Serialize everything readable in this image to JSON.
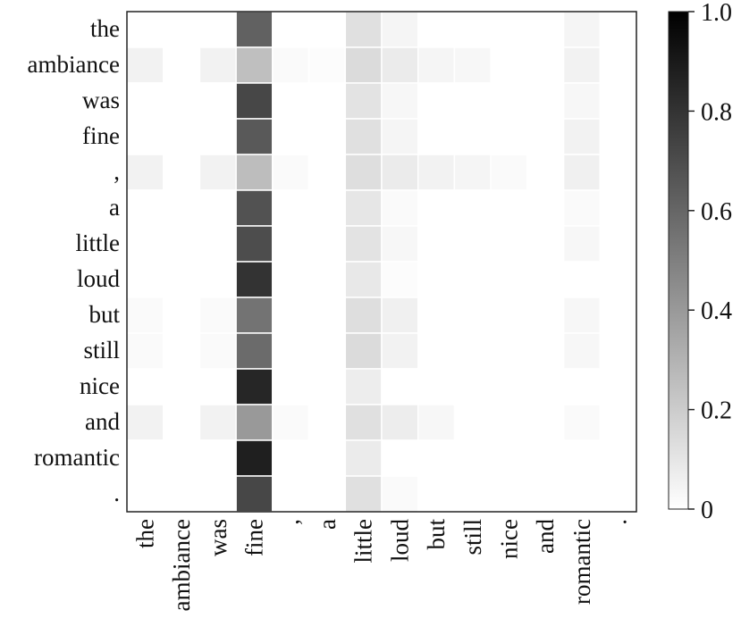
{
  "chart_data": {
    "type": "heatmap",
    "title": "",
    "xlabel": "",
    "ylabel": "",
    "x_labels": [
      "the",
      "ambiance",
      "was",
      "fine",
      ",",
      "a",
      "little",
      "loud",
      "but",
      "still",
      "nice",
      "and",
      "romantic",
      "."
    ],
    "y_labels": [
      "the",
      "ambiance",
      "was",
      "fine",
      ",",
      "a",
      "little",
      "loud",
      "but",
      "still",
      "nice",
      "and",
      "romantic",
      "."
    ],
    "values": [
      [
        0.0,
        0.0,
        0.0,
        0.62,
        0.0,
        0.0,
        0.12,
        0.04,
        0.0,
        0.0,
        0.0,
        0.0,
        0.04,
        0.0
      ],
      [
        0.05,
        0.0,
        0.05,
        0.25,
        0.02,
        0.01,
        0.14,
        0.08,
        0.04,
        0.03,
        0.0,
        0.0,
        0.05,
        0.0
      ],
      [
        0.0,
        0.0,
        0.0,
        0.72,
        0.0,
        0.0,
        0.11,
        0.03,
        0.0,
        0.0,
        0.0,
        0.0,
        0.03,
        0.0
      ],
      [
        0.0,
        0.0,
        0.0,
        0.65,
        0.0,
        0.0,
        0.12,
        0.04,
        0.0,
        0.0,
        0.0,
        0.0,
        0.05,
        0.0
      ],
      [
        0.05,
        0.0,
        0.05,
        0.26,
        0.02,
        0.0,
        0.13,
        0.08,
        0.05,
        0.04,
        0.02,
        0.0,
        0.06,
        0.0
      ],
      [
        0.0,
        0.0,
        0.0,
        0.68,
        0.0,
        0.0,
        0.1,
        0.02,
        0.0,
        0.0,
        0.0,
        0.0,
        0.02,
        0.0
      ],
      [
        0.0,
        0.0,
        0.0,
        0.7,
        0.0,
        0.0,
        0.11,
        0.03,
        0.0,
        0.0,
        0.0,
        0.0,
        0.03,
        0.0
      ],
      [
        0.0,
        0.0,
        0.0,
        0.8,
        0.0,
        0.0,
        0.09,
        0.01,
        0.0,
        0.0,
        0.0,
        0.0,
        0.0,
        0.0
      ],
      [
        0.02,
        0.0,
        0.02,
        0.55,
        0.0,
        0.0,
        0.13,
        0.06,
        0.0,
        0.0,
        0.0,
        0.0,
        0.03,
        0.0
      ],
      [
        0.02,
        0.0,
        0.02,
        0.58,
        0.0,
        0.0,
        0.14,
        0.05,
        0.0,
        0.0,
        0.0,
        0.0,
        0.03,
        0.0
      ],
      [
        0.0,
        0.0,
        0.0,
        0.85,
        0.0,
        0.0,
        0.07,
        0.0,
        0.0,
        0.0,
        0.0,
        0.0,
        0.0,
        0.0
      ],
      [
        0.05,
        0.0,
        0.05,
        0.4,
        0.02,
        0.0,
        0.12,
        0.07,
        0.03,
        0.0,
        0.0,
        0.0,
        0.02,
        0.0
      ],
      [
        0.0,
        0.0,
        0.0,
        0.88,
        0.0,
        0.0,
        0.08,
        0.0,
        0.0,
        0.0,
        0.0,
        0.0,
        0.0,
        0.0
      ],
      [
        0.0,
        0.0,
        0.0,
        0.72,
        0.0,
        0.0,
        0.12,
        0.02,
        0.0,
        0.0,
        0.0,
        0.0,
        0.0,
        0.0
      ]
    ],
    "colorbar": {
      "range": [
        0,
        1.0
      ],
      "ticks": [
        0,
        0.2,
        0.4,
        0.6,
        0.8,
        1.0
      ],
      "tick_labels": [
        "0",
        "0.2",
        "0.4",
        "0.6",
        "0.8",
        "1.0"
      ],
      "colormap": "Greys"
    },
    "colors": {
      "low": "#ffffff",
      "high": "#000000",
      "cell_border": "#ffffff",
      "frame": "#222222"
    }
  }
}
